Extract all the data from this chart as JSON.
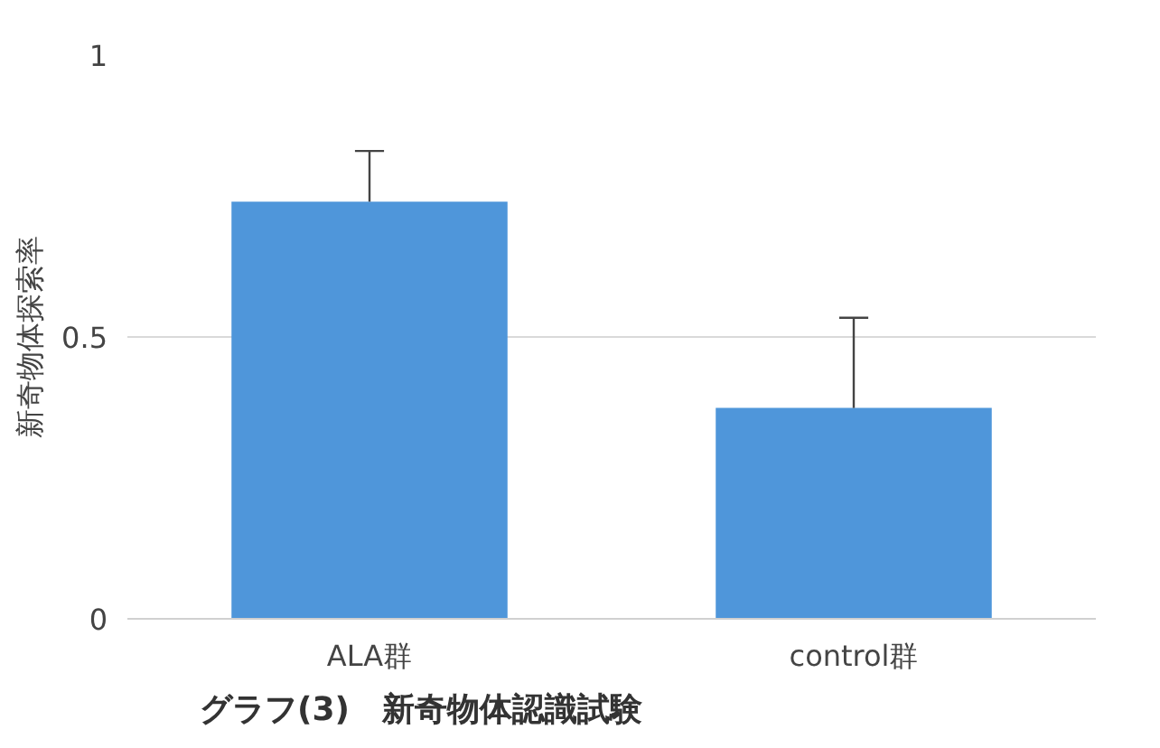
{
  "chart_data": {
    "type": "bar",
    "title": "グラフ(3)　新奇物体認識試験",
    "ylabel": "新奇物体探索率",
    "categories": [
      "ALA群",
      "control群"
    ],
    "values": [
      0.74,
      0.374
    ],
    "errors": [
      [
        0.74,
        0.83
      ],
      [
        0.374,
        0.534
      ]
    ],
    "color": "#4f96da",
    "ylim": [
      0,
      1
    ],
    "yticks": [
      0,
      0.5,
      1
    ],
    "grid": "y"
  }
}
